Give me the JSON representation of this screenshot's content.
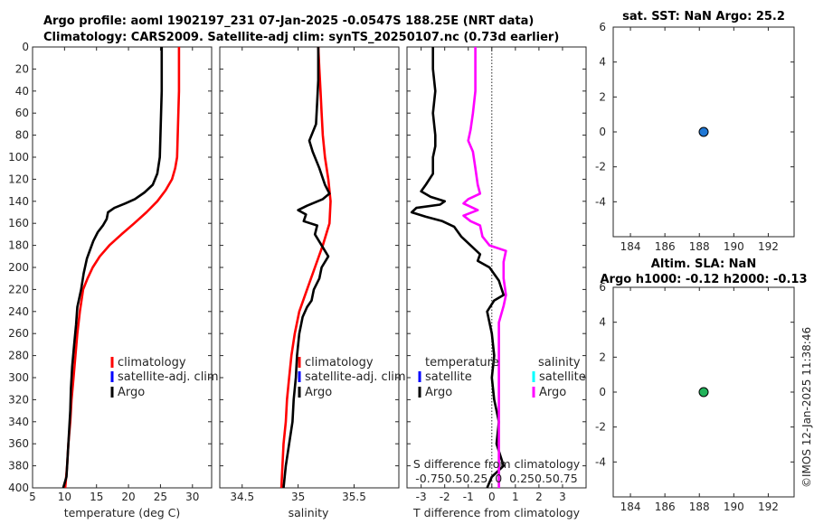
{
  "header": {
    "line1": "Argo profile: aoml 1902197_231 07-Jan-2025 -0.0547S 188.25E (NRT data)",
    "line2": "Climatology: CARS2009. Satellite-adj clim: synTS_20250107.nc (0.73d earlier)"
  },
  "stamp": "©IMOS 12-Jan-2025 11:38:46",
  "colors": {
    "climatology": "#ff0000",
    "satellite": "#0000ff",
    "argo": "#000000",
    "salinity_argo": "#ff00ff",
    "salinity_sat": "#00ffff",
    "sst_marker": "#1f77d4",
    "sla_marker": "#22b35a"
  },
  "chart_data": [
    {
      "type": "line",
      "id": "temperature",
      "xlabel": "temperature (deg C)",
      "xlim": [
        5,
        33
      ],
      "ylim": [
        0,
        400
      ],
      "y_reversed": true,
      "xticks": [
        5,
        10,
        15,
        20,
        25,
        30
      ],
      "xticklabels": [
        "5",
        "10",
        "15",
        "20",
        "25",
        "30"
      ],
      "yticks": [
        0,
        20,
        40,
        60,
        80,
        100,
        120,
        140,
        160,
        180,
        200,
        220,
        240,
        260,
        280,
        300,
        320,
        340,
        360,
        380,
        400
      ],
      "legend": [
        "climatology",
        "satellite-adj. clim",
        "Argo"
      ],
      "series": [
        {
          "name": "climatology",
          "color": "#ff0000",
          "points": [
            [
              27.9,
              0
            ],
            [
              27.9,
              20
            ],
            [
              27.9,
              40
            ],
            [
              27.8,
              60
            ],
            [
              27.7,
              80
            ],
            [
              27.6,
              100
            ],
            [
              27.3,
              110
            ],
            [
              26.8,
              120
            ],
            [
              25.8,
              130
            ],
            [
              24.5,
              140
            ],
            [
              22.8,
              150
            ],
            [
              20.9,
              160
            ],
            [
              18.9,
              170
            ],
            [
              17.0,
              180
            ],
            [
              15.5,
              190
            ],
            [
              14.4,
              200
            ],
            [
              13.6,
              210
            ],
            [
              12.9,
              220
            ],
            [
              12.4,
              240
            ],
            [
              12.0,
              260
            ],
            [
              11.7,
              280
            ],
            [
              11.4,
              300
            ],
            [
              11.1,
              320
            ],
            [
              10.9,
              340
            ],
            [
              10.6,
              360
            ],
            [
              10.4,
              380
            ],
            [
              10.1,
              400
            ]
          ]
        },
        {
          "name": "Argo",
          "color": "#000000",
          "points": [
            [
              25.2,
              0
            ],
            [
              25.2,
              20
            ],
            [
              25.2,
              40
            ],
            [
              25.1,
              60
            ],
            [
              25.0,
              80
            ],
            [
              24.9,
              100
            ],
            [
              24.5,
              115
            ],
            [
              23.8,
              125
            ],
            [
              22.5,
              132
            ],
            [
              21.0,
              138
            ],
            [
              19.5,
              142
            ],
            [
              17.8,
              146
            ],
            [
              16.8,
              150
            ],
            [
              16.6,
              156
            ],
            [
              16.0,
              162
            ],
            [
              15.2,
              168
            ],
            [
              14.5,
              176
            ],
            [
              14.0,
              184
            ],
            [
              13.5,
              192
            ],
            [
              13.0,
              205
            ],
            [
              12.6,
              220
            ],
            [
              12.0,
              236
            ],
            [
              11.8,
              252
            ],
            [
              11.5,
              270
            ],
            [
              11.2,
              290
            ],
            [
              11.0,
              310
            ],
            [
              10.9,
              330
            ],
            [
              10.7,
              350
            ],
            [
              10.5,
              370
            ],
            [
              10.3,
              390
            ],
            [
              9.8,
              400
            ]
          ]
        }
      ]
    },
    {
      "type": "line",
      "id": "salinity",
      "xlabel": "salinity",
      "xlim": [
        34.3,
        35.9
      ],
      "ylim": [
        0,
        400
      ],
      "y_reversed": true,
      "xticks": [
        34.5,
        35,
        35.5
      ],
      "xticklabels": [
        "34.5",
        "35",
        "35.5"
      ],
      "legend": [
        "climatology",
        "satellite-adj. clim",
        "Argo"
      ],
      "series": [
        {
          "name": "climatology",
          "color": "#ff0000",
          "points": [
            [
              35.18,
              0
            ],
            [
              35.19,
              20
            ],
            [
              35.2,
              40
            ],
            [
              35.21,
              60
            ],
            [
              35.22,
              80
            ],
            [
              35.24,
              100
            ],
            [
              35.27,
              120
            ],
            [
              35.29,
              140
            ],
            [
              35.28,
              160
            ],
            [
              35.22,
              180
            ],
            [
              35.15,
              200
            ],
            [
              35.08,
              220
            ],
            [
              35.01,
              240
            ],
            [
              34.97,
              260
            ],
            [
              34.94,
              280
            ],
            [
              34.92,
              300
            ],
            [
              34.9,
              320
            ],
            [
              34.89,
              340
            ],
            [
              34.87,
              360
            ],
            [
              34.86,
              380
            ],
            [
              34.85,
              400
            ]
          ]
        },
        {
          "name": "Argo",
          "color": "#000000",
          "points": [
            [
              35.18,
              0
            ],
            [
              35.18,
              30
            ],
            [
              35.17,
              50
            ],
            [
              35.16,
              70
            ],
            [
              35.1,
              85
            ],
            [
              35.13,
              95
            ],
            [
              35.19,
              110
            ],
            [
              35.24,
              125
            ],
            [
              35.28,
              133
            ],
            [
              35.22,
              138
            ],
            [
              35.08,
              144
            ],
            [
              35.0,
              148
            ],
            [
              35.07,
              152
            ],
            [
              35.05,
              158
            ],
            [
              35.17,
              162
            ],
            [
              35.15,
              170
            ],
            [
              35.21,
              180
            ],
            [
              35.27,
              190
            ],
            [
              35.21,
              200
            ],
            [
              35.19,
              210
            ],
            [
              35.14,
              220
            ],
            [
              35.12,
              230
            ],
            [
              35.08,
              236
            ],
            [
              35.04,
              245
            ],
            [
              35.01,
              260
            ],
            [
              34.99,
              280
            ],
            [
              34.98,
              300
            ],
            [
              34.96,
              320
            ],
            [
              34.95,
              340
            ],
            [
              34.92,
              360
            ],
            [
              34.89,
              380
            ],
            [
              34.87,
              400
            ]
          ]
        }
      ]
    },
    {
      "type": "line",
      "id": "difference",
      "xlabel": "T difference from climatology",
      "top_xlabel": "S difference from climatology",
      "xlim": [
        -3.6,
        4.0
      ],
      "ylim": [
        0,
        400
      ],
      "y_reversed": true,
      "xticks": [
        -3,
        -2,
        -1,
        0,
        1,
        2,
        3
      ],
      "xticklabels": [
        "-3",
        "-2",
        "-1",
        "0",
        "1",
        "2",
        "3"
      ],
      "s_ticklabels": [
        "-0.75",
        "0.5",
        "0.25",
        "0",
        "0.25",
        "0.5",
        "0.75"
      ],
      "s_ticklabels_raw": "-0.750.50.25  0  0.250.50.75",
      "legend_left_title": "temperature",
      "legend_right_title": "salinity",
      "legend_left": [
        "satellite",
        "Argo"
      ],
      "legend_right": [
        "satellite",
        "Argo"
      ],
      "series": [
        {
          "name": "T Argo diff",
          "color": "#000000",
          "points": [
            [
              -2.5,
              0
            ],
            [
              -2.5,
              20
            ],
            [
              -2.4,
              40
            ],
            [
              -2.5,
              60
            ],
            [
              -2.4,
              80
            ],
            [
              -2.4,
              90
            ],
            [
              -2.5,
              100
            ],
            [
              -2.5,
              115
            ],
            [
              -2.8,
              125
            ],
            [
              -3.0,
              131
            ],
            [
              -2.6,
              136
            ],
            [
              -2.0,
              140
            ],
            [
              -2.2,
              143
            ],
            [
              -3.2,
              146
            ],
            [
              -3.4,
              150
            ],
            [
              -2.8,
              154
            ],
            [
              -2.1,
              158
            ],
            [
              -1.6,
              163
            ],
            [
              -1.3,
              172
            ],
            [
              -0.9,
              180
            ],
            [
              -0.5,
              188
            ],
            [
              -0.6,
              194
            ],
            [
              -0.1,
              200
            ],
            [
              0.3,
              212
            ],
            [
              0.5,
              225
            ],
            [
              0.1,
              230
            ],
            [
              -0.2,
              240
            ],
            [
              0.0,
              260
            ],
            [
              0.1,
              280
            ],
            [
              0.0,
              300
            ],
            [
              0.1,
              320
            ],
            [
              0.3,
              340
            ],
            [
              0.2,
              360
            ],
            [
              0.5,
              380
            ],
            [
              0.0,
              390
            ],
            [
              -0.2,
              400
            ]
          ]
        },
        {
          "name": "S Argo diff",
          "color": "#ff00ff",
          "points": [
            [
              -0.7,
              0
            ],
            [
              -0.7,
              20
            ],
            [
              -0.7,
              40
            ],
            [
              -0.8,
              60
            ],
            [
              -0.9,
              75
            ],
            [
              -1.0,
              85
            ],
            [
              -0.8,
              95
            ],
            [
              -0.7,
              110
            ],
            [
              -0.6,
              125
            ],
            [
              -0.5,
              133
            ],
            [
              -1.0,
              138
            ],
            [
              -1.2,
              142
            ],
            [
              -0.6,
              148
            ],
            [
              -1.2,
              153
            ],
            [
              -0.9,
              158
            ],
            [
              -0.5,
              162
            ],
            [
              -0.4,
              172
            ],
            [
              -0.1,
              180
            ],
            [
              0.6,
              185
            ],
            [
              0.5,
              195
            ],
            [
              0.5,
              210
            ],
            [
              0.6,
              225
            ],
            [
              0.5,
              235
            ],
            [
              0.3,
              250
            ],
            [
              0.3,
              270
            ],
            [
              0.3,
              290
            ],
            [
              0.3,
              310
            ],
            [
              0.3,
              330
            ],
            [
              0.3,
              350
            ],
            [
              0.3,
              370
            ],
            [
              0.3,
              390
            ],
            [
              0.3,
              400
            ]
          ]
        }
      ]
    },
    {
      "type": "scatter",
      "id": "sst",
      "title": "sat. SST: NaN Argo: 25.2",
      "xlim": [
        183,
        193.5
      ],
      "ylim": [
        -6,
        6
      ],
      "xticks": [
        184,
        186,
        188,
        190,
        192
      ],
      "xticklabels": [
        "184",
        "186",
        "188",
        "190",
        "192"
      ],
      "yticks": [
        6,
        4,
        2,
        0,
        -2,
        -4
      ],
      "yticklabels": [
        "6",
        "4",
        "2",
        "0",
        "-2",
        "-4"
      ],
      "points": [
        [
          188.25,
          0
        ]
      ]
    },
    {
      "type": "scatter",
      "id": "sla",
      "title_line1": "Altim. SLA: NaN",
      "title_line2": "Argo h1000: -0.12 h2000: -0.13",
      "xlim": [
        183,
        193.5
      ],
      "ylim": [
        -6,
        6
      ],
      "xticks": [
        184,
        186,
        188,
        190,
        192
      ],
      "xticklabels": [
        "184",
        "186",
        "188",
        "190",
        "192"
      ],
      "yticks": [
        6,
        4,
        2,
        0,
        -2,
        -4
      ],
      "yticklabels": [
        "6",
        "4",
        "2",
        "0",
        "-2",
        "-4"
      ],
      "points": [
        [
          188.25,
          0
        ]
      ]
    }
  ]
}
